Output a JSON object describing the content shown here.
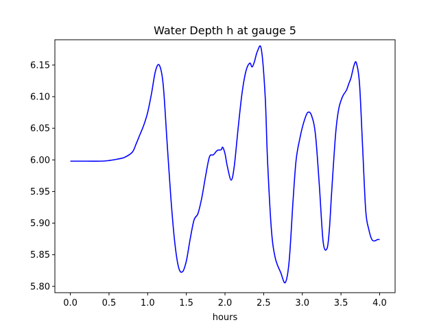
{
  "chart_data": {
    "type": "line",
    "title": "Water Depth h at gauge 5",
    "xlabel": "hours",
    "ylabel": "",
    "xlim": [
      -0.2,
      4.2
    ],
    "ylim": [
      5.79,
      6.19
    ],
    "grid": false,
    "legend": "none",
    "x_ticks": [
      0.0,
      0.5,
      1.0,
      1.5,
      2.0,
      2.5,
      3.0,
      3.5,
      4.0
    ],
    "x_tick_labels": [
      "0.0",
      "0.5",
      "1.0",
      "1.5",
      "2.0",
      "2.5",
      "3.0",
      "3.5",
      "4.0"
    ],
    "y_ticks": [
      5.8,
      5.85,
      5.9,
      5.95,
      6.0,
      6.05,
      6.1,
      6.15
    ],
    "y_tick_labels": [
      "5.80",
      "5.85",
      "5.90",
      "5.95",
      "6.00",
      "6.05",
      "6.10",
      "6.15"
    ],
    "series": [
      {
        "color": "#0000ff",
        "x": [
          0.0,
          0.2,
          0.4,
          0.5,
          0.6,
          0.7,
          0.8,
          0.85,
          0.9,
          0.95,
          1.0,
          1.05,
          1.1,
          1.15,
          1.2,
          1.25,
          1.3,
          1.35,
          1.4,
          1.45,
          1.5,
          1.55,
          1.6,
          1.65,
          1.7,
          1.75,
          1.8,
          1.85,
          1.9,
          1.95,
          1.97,
          2.0,
          2.03,
          2.08,
          2.12,
          2.17,
          2.22,
          2.27,
          2.32,
          2.35,
          2.38,
          2.42,
          2.47,
          2.52,
          2.55,
          2.6,
          2.65,
          2.72,
          2.78,
          2.83,
          2.88,
          2.92,
          2.97,
          3.02,
          3.07,
          3.12,
          3.17,
          3.22,
          3.27,
          3.32,
          3.35,
          3.38,
          3.43,
          3.47,
          3.52,
          3.57,
          3.6,
          3.63,
          3.67,
          3.7,
          3.74,
          3.78,
          3.82,
          3.86,
          3.9,
          3.94,
          3.97,
          4.0
        ],
        "y": [
          5.998,
          5.998,
          5.998,
          5.999,
          6.001,
          6.004,
          6.012,
          6.025,
          6.04,
          6.055,
          6.075,
          6.105,
          6.14,
          6.15,
          6.12,
          6.03,
          5.94,
          5.87,
          5.83,
          5.823,
          5.84,
          5.875,
          5.905,
          5.915,
          5.94,
          5.975,
          6.005,
          6.008,
          6.015,
          6.016,
          6.02,
          6.01,
          5.99,
          5.968,
          5.99,
          6.05,
          6.105,
          6.14,
          6.153,
          6.147,
          6.155,
          6.172,
          6.175,
          6.1,
          6.0,
          5.89,
          5.845,
          5.822,
          5.806,
          5.84,
          5.935,
          6.0,
          6.035,
          6.06,
          6.075,
          6.07,
          6.04,
          5.96,
          5.87,
          5.86,
          5.89,
          5.95,
          6.04,
          6.08,
          6.1,
          6.11,
          6.12,
          6.13,
          6.15,
          6.153,
          6.12,
          6.02,
          5.92,
          5.89,
          5.874,
          5.872,
          5.874,
          5.874
        ]
      }
    ]
  }
}
